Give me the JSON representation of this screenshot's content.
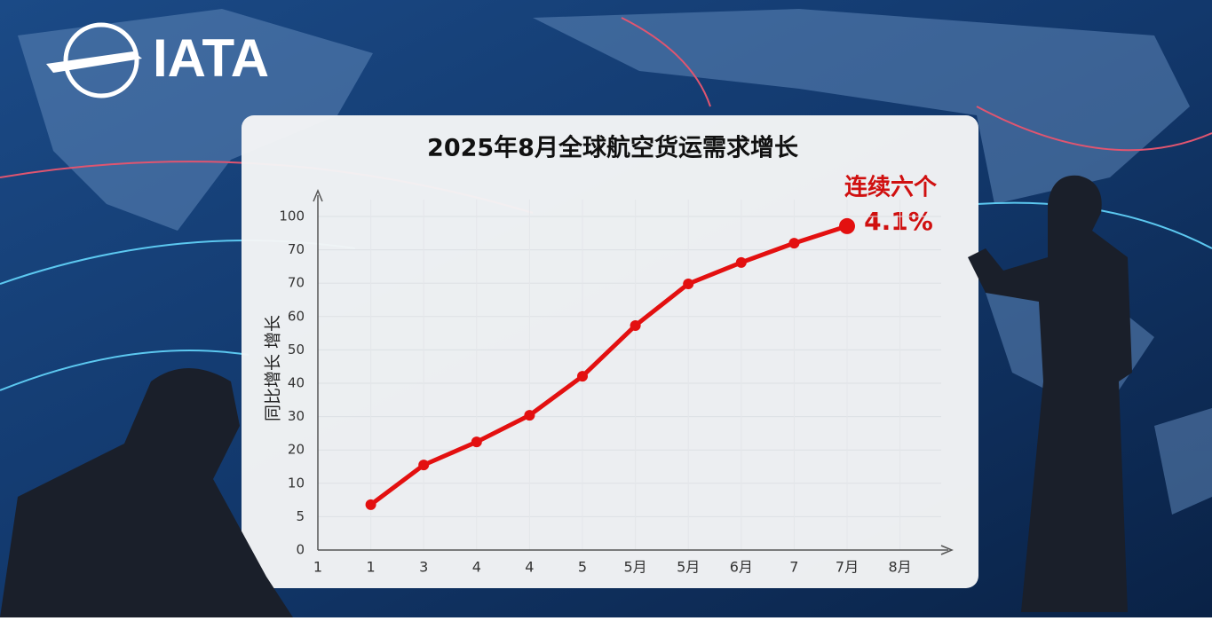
{
  "brand": "IATA",
  "chart_data": {
    "type": "line",
    "title": "2025年8月全球航空货运需求增长",
    "y_label": "同比增长 增长",
    "annotation": [
      "连续六个",
      "4.1%"
    ],
    "categories": [
      "1",
      "1",
      "3",
      "4",
      "4",
      "5",
      "5月",
      "5月",
      "6月",
      "7",
      "7月",
      "8月"
    ],
    "series": [
      {
        "name": null,
        "color": "#e31010",
        "values": [
          null,
          13.6,
          25.5,
          32.4,
          40.4,
          52.1,
          67.3,
          79.8,
          86.2,
          92,
          97.1,
          null
        ]
      }
    ],
    "ylim": [
      0,
      100
    ],
    "yticks": [
      0,
      {
        "value": 10,
        "label": "5"
      },
      {
        "value": 20,
        "label": "10"
      },
      {
        "value": 30,
        "label": "20"
      },
      {
        "value": 40,
        "label": "30"
      },
      {
        "value": 50,
        "label": "40"
      },
      {
        "value": 60,
        "label": "50"
      },
      {
        "value": 70,
        "label": "60"
      },
      {
        "value": 80,
        "label": "70"
      },
      {
        "value": 90,
        "label": "70"
      },
      {
        "value": 100,
        "label": "100"
      }
    ],
    "grid": true
  }
}
